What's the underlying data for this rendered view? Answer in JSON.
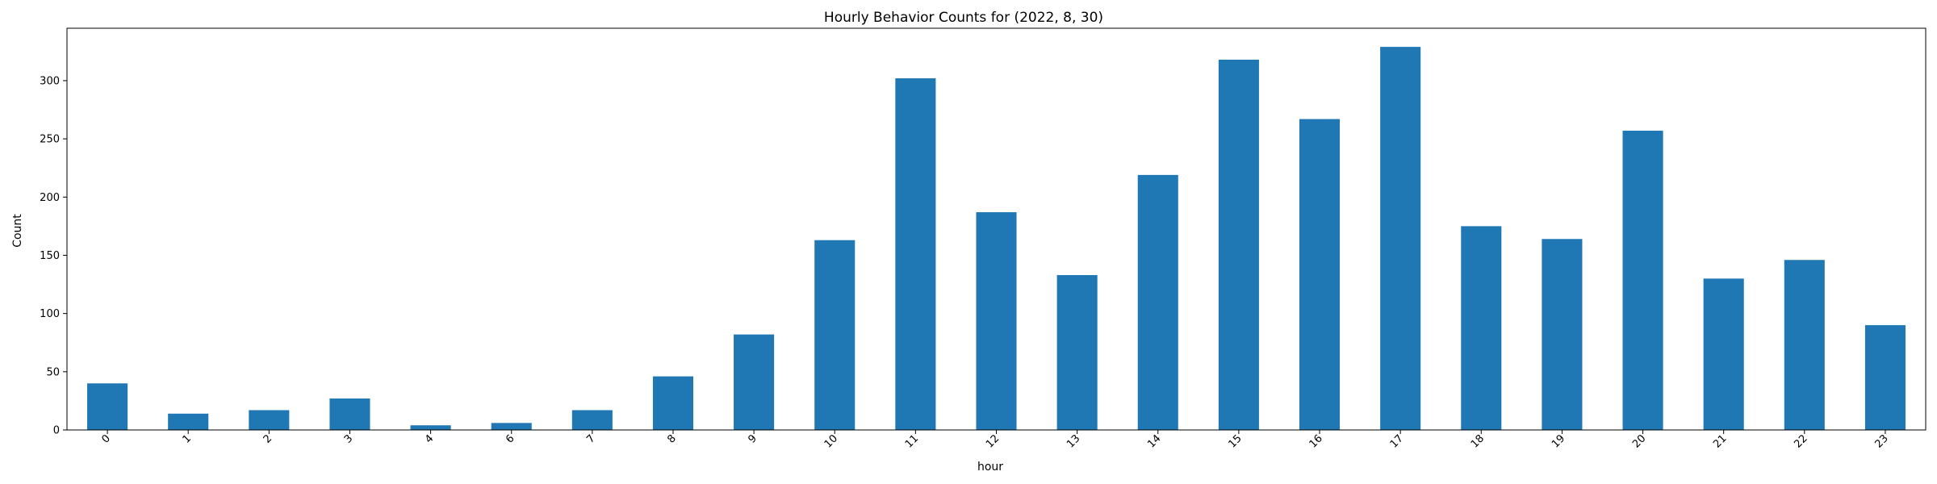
{
  "chart_data": {
    "type": "bar",
    "title": "Hourly Behavior Counts for (2022, 8, 30)",
    "xlabel": "hour",
    "ylabel": "Count",
    "categories": [
      "0",
      "1",
      "2",
      "3",
      "4",
      "6",
      "7",
      "8",
      "9",
      "10",
      "11",
      "12",
      "13",
      "14",
      "15",
      "16",
      "17",
      "18",
      "19",
      "20",
      "21",
      "22",
      "23"
    ],
    "values": [
      40,
      14,
      17,
      27,
      4,
      6,
      17,
      46,
      82,
      163,
      302,
      187,
      133,
      219,
      318,
      267,
      329,
      175,
      164,
      257,
      130,
      146,
      90
    ],
    "ylim": [
      0,
      345
    ],
    "yticks": [
      0,
      50,
      100,
      150,
      200,
      250,
      300
    ],
    "bar_color": "#1f77b4",
    "grid": false,
    "legend": "none"
  }
}
